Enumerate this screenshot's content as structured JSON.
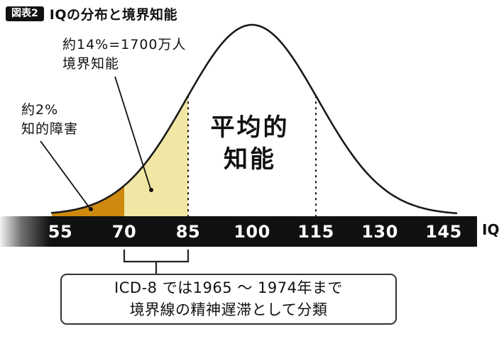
{
  "header": {
    "tag": "図表2",
    "title": "IQの分布と境界知能"
  },
  "chart_data": {
    "type": "area",
    "title": "IQの分布と境界知能",
    "x_axis": {
      "label": "IQ",
      "ticks": [
        55,
        70,
        85,
        100,
        115,
        130,
        145
      ],
      "range": [
        55,
        145
      ]
    },
    "distribution": {
      "shape": "normal",
      "mean": 100,
      "sd": 15.5
    },
    "curve_range": [
      53,
      148
    ],
    "dotted_lines_at": [
      85,
      115
    ],
    "regions": [
      {
        "id": "intellectual-disability",
        "label": "知的障害",
        "share": "約2%",
        "from": 55,
        "to": 70,
        "color": "#cd8a0e"
      },
      {
        "id": "borderline-intelligence",
        "label": "境界知能",
        "share": "約14%=1700万人",
        "from": 70,
        "to": 85,
        "color": "#f2e6a4"
      },
      {
        "id": "average-intelligence",
        "label": "平均的知能",
        "from": 85,
        "to": 115,
        "color": "none"
      }
    ]
  },
  "annotations": {
    "borderline": {
      "line1": "約14%=1700万人",
      "line2": "境界知能"
    },
    "disability": {
      "line1": "約2%",
      "line2": "知的障害"
    },
    "average": {
      "line1": "平均的",
      "line2": "知能"
    }
  },
  "note_box": {
    "line1": "ICD-8 では1965 〜 1974年まで",
    "line2": "境界線の精神遅滞として分類"
  },
  "colors": {
    "curve": "#1a1a1a",
    "axis_bar": "#111111",
    "disability_fill": "#cd8a0e",
    "borderline_fill": "#f2e6a4",
    "tick_text": "#ffffff"
  }
}
